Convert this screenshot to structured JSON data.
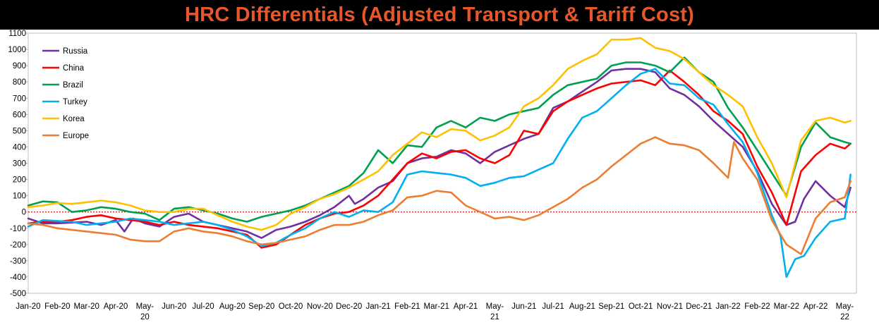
{
  "chart_data": {
    "type": "line",
    "title": "HRC Differentials (Adjusted Transport & Tariff Cost)",
    "ylim": [
      -500,
      1100
    ],
    "y_ticks": [
      -500,
      -400,
      -300,
      -200,
      -100,
      0,
      100,
      200,
      300,
      400,
      500,
      600,
      700,
      800,
      900,
      1000,
      1100
    ],
    "x_tick_labels": [
      "Jan-20",
      "Feb-20",
      "Mar-20",
      "Apr-20",
      "May-20",
      "Jun-20",
      "Jul-20",
      "Aug-20",
      "Sep-20",
      "Oct-20",
      "Nov-20",
      "Dec-20",
      "Jan-21",
      "Feb-21",
      "Mar-21",
      "Apr-21",
      "May-21",
      "Jun-21",
      "Jul-21",
      "Aug-21",
      "Sep-21",
      "Oct-21",
      "Nov-21",
      "Dec-21",
      "Jan-22",
      "Feb-22",
      "Mar-22",
      "Apr-22",
      "May-22"
    ],
    "x_range": [
      0,
      28.4
    ],
    "zero_line": {
      "value": 0,
      "color": "#C00000",
      "style": "dotted"
    },
    "legend": {
      "position": "top-left"
    },
    "grid": false,
    "series": [
      {
        "name": "Russia",
        "color": "#7030A0",
        "x": [
          0,
          0.5,
          1,
          1.5,
          2,
          2.5,
          3,
          3.3,
          3.6,
          4,
          4.5,
          5,
          5.5,
          6,
          6.5,
          7,
          7.5,
          8,
          8.5,
          9,
          9.5,
          10,
          10.5,
          11,
          11.2,
          11.5,
          12,
          12.5,
          13,
          13.5,
          14,
          14.5,
          15,
          15.5,
          16,
          16.5,
          17,
          17.5,
          18,
          18.5,
          19,
          19.5,
          20,
          20.5,
          21,
          21.5,
          22,
          22.5,
          23,
          23.5,
          24,
          24.5,
          25,
          25.5,
          26,
          26.3,
          26.6,
          27,
          27.5,
          28,
          28.2
        ],
        "values": [
          -40,
          -70,
          -70,
          -65,
          -60,
          -80,
          -50,
          -120,
          -40,
          -70,
          -90,
          -30,
          -10,
          -60,
          -80,
          -100,
          -120,
          -160,
          -110,
          -90,
          -60,
          -20,
          30,
          100,
          50,
          80,
          150,
          190,
          300,
          330,
          340,
          380,
          360,
          300,
          370,
          410,
          450,
          480,
          640,
          680,
          740,
          800,
          870,
          880,
          880,
          860,
          760,
          720,
          650,
          560,
          480,
          400,
          250,
          50,
          -80,
          -60,
          80,
          190,
          100,
          30,
          150
        ]
      },
      {
        "name": "China",
        "color": "#FF0000",
        "x": [
          0,
          0.5,
          1,
          1.5,
          2,
          2.5,
          3,
          3.5,
          4,
          4.5,
          5,
          5.5,
          6,
          6.5,
          7,
          7.5,
          8,
          8.5,
          9,
          9.5,
          10,
          10.5,
          11,
          11.5,
          12,
          12.5,
          13,
          13.5,
          14,
          14.5,
          15,
          15.5,
          16,
          16.5,
          17,
          17.5,
          18,
          18.5,
          19,
          19.5,
          20,
          20.5,
          21,
          21.5,
          22,
          22.5,
          23,
          23.5,
          24,
          24.5,
          25,
          25.5,
          26,
          26.5,
          27,
          27.5,
          28,
          28.2
        ],
        "values": [
          -70,
          -60,
          -60,
          -50,
          -30,
          -20,
          -40,
          -50,
          -60,
          -80,
          -60,
          -80,
          -90,
          -100,
          -120,
          -140,
          -220,
          -200,
          -140,
          -80,
          -40,
          -10,
          0,
          40,
          100,
          200,
          300,
          360,
          330,
          370,
          380,
          330,
          300,
          350,
          500,
          480,
          620,
          680,
          720,
          760,
          790,
          800,
          810,
          780,
          870,
          800,
          720,
          620,
          560,
          480,
          280,
          120,
          -80,
          250,
          350,
          420,
          390,
          420
        ]
      },
      {
        "name": "Brazil",
        "color": "#00A050",
        "x": [
          0,
          0.5,
          1,
          1.5,
          2,
          2.5,
          3,
          3.5,
          4,
          4.5,
          5,
          5.5,
          6,
          6.5,
          7,
          7.5,
          8,
          8.5,
          9,
          9.5,
          10,
          10.5,
          11,
          11.5,
          12,
          12.5,
          13,
          13.5,
          14,
          14.5,
          15,
          15.5,
          16,
          16.5,
          17,
          17.5,
          18,
          18.5,
          19,
          19.5,
          20,
          20.5,
          21,
          21.5,
          22,
          22.5,
          23,
          23.5,
          24,
          24.5,
          25,
          25.5,
          26,
          26.5,
          27,
          27.5,
          28,
          28.2
        ],
        "values": [
          40,
          65,
          60,
          0,
          10,
          30,
          20,
          0,
          -10,
          -50,
          20,
          30,
          10,
          -10,
          -40,
          -60,
          -30,
          -10,
          10,
          40,
          80,
          120,
          160,
          240,
          380,
          300,
          410,
          400,
          520,
          560,
          520,
          580,
          560,
          600,
          620,
          640,
          720,
          780,
          800,
          820,
          900,
          920,
          920,
          900,
          860,
          950,
          860,
          800,
          640,
          520,
          380,
          240,
          100,
          400,
          550,
          460,
          430,
          420
        ]
      },
      {
        "name": "Turkey",
        "color": "#00B0F0",
        "x": [
          0,
          0.5,
          1,
          1.5,
          2,
          2.5,
          3,
          3.5,
          4,
          4.5,
          5,
          5.5,
          6,
          6.5,
          7,
          7.5,
          8,
          8.5,
          9,
          9.5,
          10,
          10.5,
          11,
          11.5,
          12,
          12.5,
          13,
          13.5,
          14,
          14.5,
          15,
          15.5,
          16,
          16.5,
          17,
          17.5,
          18,
          18.5,
          19,
          19.5,
          20,
          20.5,
          21,
          21.5,
          22,
          22.5,
          23,
          23.5,
          24,
          24.5,
          25,
          25.5,
          25.8,
          26,
          26.3,
          26.6,
          27,
          27.5,
          28,
          28.2
        ],
        "values": [
          -90,
          -50,
          -55,
          -60,
          -80,
          -70,
          -60,
          -40,
          -50,
          -60,
          -80,
          -70,
          -60,
          -80,
          -110,
          -150,
          -210,
          -190,
          -140,
          -100,
          -40,
          0,
          -30,
          10,
          0,
          60,
          230,
          250,
          240,
          230,
          210,
          160,
          180,
          210,
          220,
          260,
          300,
          450,
          580,
          620,
          700,
          780,
          850,
          880,
          790,
          780,
          700,
          660,
          540,
          430,
          240,
          -20,
          -150,
          -400,
          -290,
          -270,
          -160,
          -60,
          -40,
          230
        ]
      },
      {
        "name": "Korea",
        "color": "#FFC000",
        "x": [
          0,
          0.5,
          1,
          1.5,
          2,
          2.5,
          3,
          3.5,
          4,
          4.5,
          5,
          5.5,
          6,
          6.5,
          7,
          7.5,
          8,
          8.5,
          9,
          9.5,
          10,
          10.5,
          11,
          11.5,
          12,
          12.5,
          13,
          13.5,
          14,
          14.5,
          15,
          15.5,
          16,
          16.5,
          17,
          17.5,
          18,
          18.5,
          19,
          19.5,
          20,
          20.5,
          21,
          21.5,
          22,
          22.5,
          23,
          23.5,
          24,
          24.5,
          25,
          25.5,
          26,
          26.5,
          27,
          27.5,
          28,
          28.2
        ],
        "values": [
          30,
          40,
          55,
          50,
          60,
          70,
          60,
          40,
          10,
          0,
          0,
          20,
          20,
          -20,
          -60,
          -90,
          -110,
          -80,
          -10,
          30,
          80,
          110,
          150,
          200,
          250,
          350,
          420,
          490,
          460,
          510,
          500,
          440,
          470,
          520,
          650,
          700,
          780,
          880,
          930,
          970,
          1060,
          1060,
          1070,
          1010,
          990,
          940,
          860,
          780,
          720,
          650,
          460,
          300,
          90,
          440,
          560,
          580,
          550,
          560
        ]
      },
      {
        "name": "Europe",
        "color": "#ED7D31",
        "x": [
          0,
          0.5,
          1,
          1.5,
          2,
          2.5,
          3,
          3.5,
          4,
          4.5,
          5,
          5.5,
          6,
          6.5,
          7,
          7.5,
          8,
          8.5,
          9,
          9.5,
          10,
          10.5,
          11,
          11.5,
          12,
          12.5,
          13,
          13.5,
          14,
          14.5,
          15,
          15.5,
          16,
          16.5,
          17,
          17.5,
          18,
          18.5,
          19,
          19.5,
          20,
          20.5,
          21,
          21.5,
          22,
          22.5,
          23,
          23.5,
          24,
          24.2,
          24.5,
          25,
          25.5,
          26,
          26.5,
          27,
          27.5,
          28,
          28.2
        ],
        "values": [
          -70,
          -80,
          -100,
          -110,
          -120,
          -130,
          -140,
          -170,
          -180,
          -180,
          -120,
          -100,
          -120,
          -130,
          -150,
          -180,
          -200,
          -190,
          -170,
          -150,
          -110,
          -80,
          -80,
          -60,
          -20,
          10,
          90,
          100,
          130,
          120,
          40,
          0,
          -40,
          -30,
          -50,
          -20,
          30,
          80,
          150,
          200,
          280,
          350,
          420,
          460,
          420,
          410,
          380,
          300,
          210,
          430,
          330,
          200,
          -50,
          -200,
          -260,
          -40,
          60,
          90,
          190
        ]
      }
    ]
  }
}
